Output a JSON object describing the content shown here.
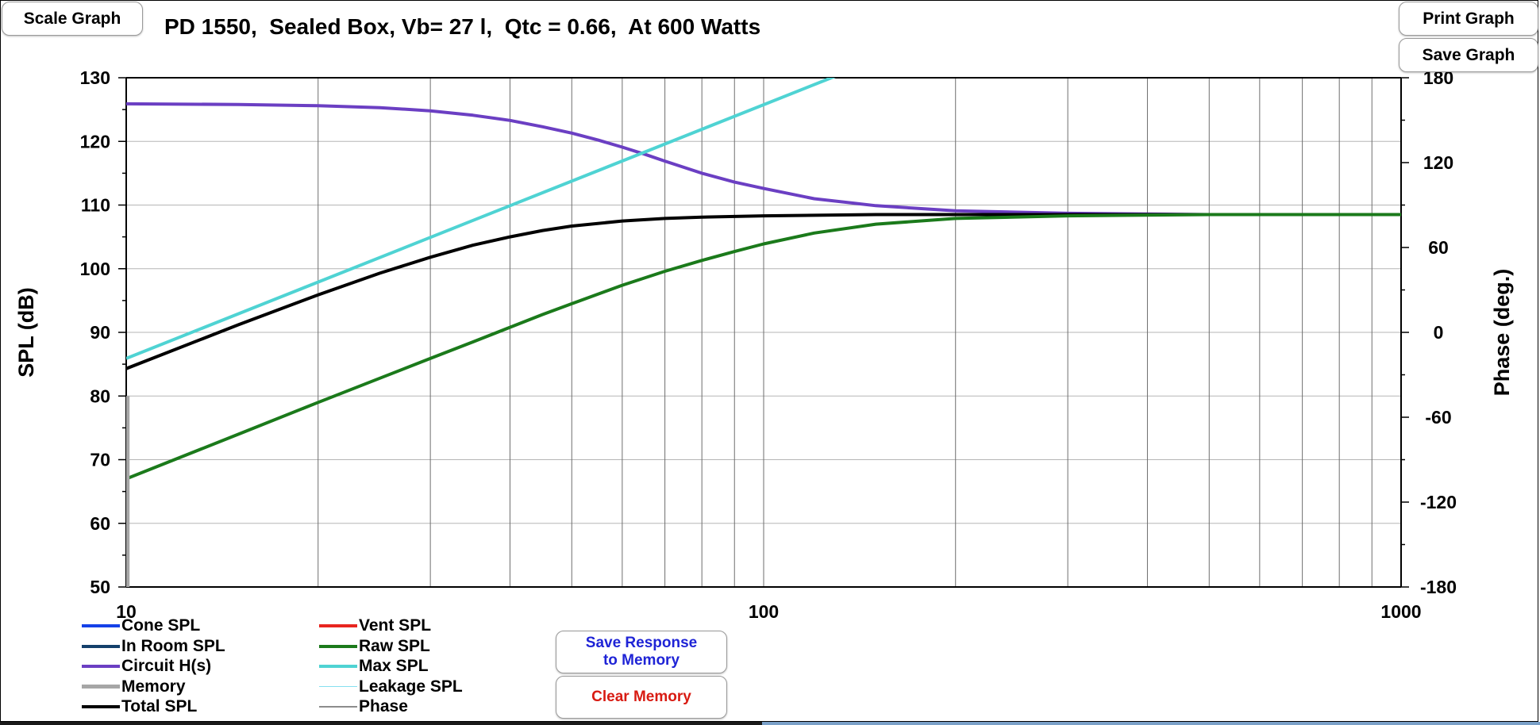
{
  "window": {
    "title": "PD 1550,  Sealed Box, Vb= 27 l,  Qtc = 0.66,  At 600 Watts"
  },
  "buttons": {
    "scale_graph": "Scale Graph",
    "print_graph": "Print Graph",
    "save_graph": "Save Graph",
    "save_response_line1": "Save Response",
    "save_response_line2": "to Memory",
    "clear_memory": "Clear Memory"
  },
  "colors": {
    "cone": "#1541e8",
    "vent": "#e8251f",
    "in_room": "#14406b",
    "raw": "#1b7a1b",
    "circuit": "#6b3fc3",
    "max": "#4fd3d3",
    "memory": "#a6a6a6",
    "leakage": "#85e0f0",
    "total": "#000000",
    "phase": "#8c8c8c",
    "save_response_text": "#1f24d6",
    "clear_memory_text": "#d81b12"
  },
  "chart_data": {
    "type": "line",
    "title": "PD 1550,  Sealed Box, Vb= 27 l,  Qtc = 0.66,  At 600 Watts",
    "xlabel": "",
    "ylabel": "SPL (dB)",
    "y2label": "Phase (deg.)",
    "xscale": "log",
    "xlim": [
      10,
      1000
    ],
    "ylim": [
      50,
      130
    ],
    "y2lim": [
      -180,
      180
    ],
    "x_ticks": [
      "10",
      "100",
      "1000"
    ],
    "y_ticks": [
      130,
      120,
      110,
      100,
      90,
      80,
      70,
      60,
      50
    ],
    "y2_ticks": [
      180,
      120,
      60,
      0,
      -60,
      -120,
      -180
    ],
    "grid": true,
    "legend_position": "bottom-left",
    "legend": [
      {
        "name": "Cone SPL",
        "color_key": "cone",
        "width": 4
      },
      {
        "name": "In Room SPL",
        "color_key": "in_room",
        "width": 4
      },
      {
        "name": "Circuit H(s)",
        "color_key": "circuit",
        "width": 4
      },
      {
        "name": "Memory",
        "color_key": "memory",
        "width": 5
      },
      {
        "name": "Total SPL",
        "color_key": "total",
        "width": 4
      },
      {
        "name": "Vent SPL",
        "color_key": "vent",
        "width": 4
      },
      {
        "name": "Raw SPL",
        "color_key": "raw",
        "width": 4
      },
      {
        "name": "Max SPL",
        "color_key": "max",
        "width": 4
      },
      {
        "name": "Leakage SPL",
        "color_key": "leakage",
        "width": 1
      },
      {
        "name": "Phase",
        "color_key": "phase",
        "width": 2
      }
    ],
    "series": [
      {
        "name": "Circuit H(s)",
        "color_key": "circuit",
        "x": [
          10,
          15,
          20,
          25,
          30,
          35,
          40,
          45,
          50,
          55,
          60,
          65,
          70,
          80,
          90,
          100,
          120,
          150,
          200,
          300,
          500,
          1000
        ],
        "y": [
          125.9,
          125.8,
          125.6,
          125.3,
          124.8,
          124.1,
          123.3,
          122.3,
          121.3,
          120.2,
          119.1,
          118.0,
          116.9,
          115.0,
          113.6,
          112.6,
          111.0,
          109.9,
          109.1,
          108.7,
          108.5,
          108.5
        ]
      },
      {
        "name": "Max SPL",
        "color_key": "max",
        "x": [
          10,
          20,
          40,
          80,
          133
        ],
        "y": [
          85.9,
          97.9,
          109.9,
          121.9,
          130.7
        ]
      },
      {
        "name": "Total SPL",
        "color_key": "total",
        "x": [
          10,
          15,
          20,
          25,
          30,
          35,
          40,
          45,
          50,
          60,
          70,
          80,
          100,
          150,
          200,
          500,
          1000
        ],
        "y": [
          84.3,
          91.2,
          95.9,
          99.3,
          101.8,
          103.7,
          105.0,
          106.0,
          106.7,
          107.5,
          107.9,
          108.1,
          108.3,
          108.5,
          108.5,
          108.5,
          108.5
        ]
      },
      {
        "name": "Raw SPL",
        "color_key": "raw",
        "x": [
          10,
          15,
          20,
          25,
          30,
          35,
          40,
          45,
          50,
          60,
          70,
          80,
          90,
          100,
          120,
          150,
          200,
          300,
          500,
          1000
        ],
        "y": [
          67.0,
          74.0,
          79.0,
          82.8,
          85.9,
          88.5,
          90.8,
          92.8,
          94.5,
          97.4,
          99.6,
          101.3,
          102.7,
          103.9,
          105.6,
          107.0,
          107.9,
          108.3,
          108.5,
          108.5
        ]
      },
      {
        "name": "Memory",
        "color_key": "memory",
        "x": [
          10.05,
          10.05
        ],
        "y": [
          50,
          80
        ]
      }
    ]
  }
}
